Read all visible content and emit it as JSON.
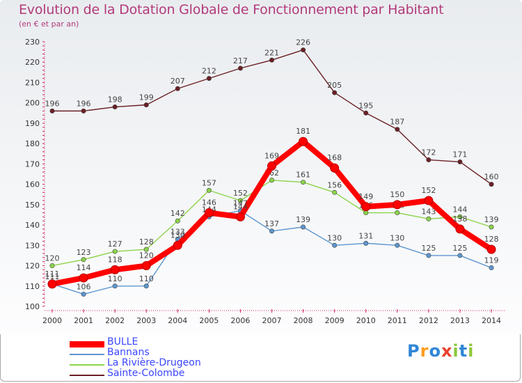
{
  "title": "Evolution de la Dotation Globale de Fonctionnement par Habitant",
  "subtitle": "(en € et par an)",
  "logo": "Proxiti",
  "chart_data": {
    "type": "line",
    "title": "Evolution de la Dotation Globale de Fonctionnement par Habitant",
    "subtitle": "(en € et par an)",
    "xlabel": "",
    "ylabel": "",
    "x": [
      "2000",
      "2001",
      "2002",
      "2003",
      "2004",
      "2005",
      "2006",
      "2007",
      "2008",
      "2009",
      "2010",
      "2011",
      "2012",
      "2013",
      "2014"
    ],
    "ylim": [
      100,
      230
    ],
    "yticks": [
      100,
      110,
      120,
      130,
      140,
      150,
      160,
      170,
      180,
      190,
      200,
      210,
      220,
      230
    ],
    "grid": false,
    "legend_position": "bottom-left",
    "series": [
      {
        "name": "Sainte-Colombe",
        "color": "#6b1f25",
        "values": [
          196,
          196,
          198,
          199,
          207,
          212,
          217,
          221,
          226,
          205,
          195,
          187,
          172,
          171,
          160
        ]
      },
      {
        "name": "La Rivière-Drugeon",
        "color": "#8bd34a",
        "values": [
          120,
          123,
          127,
          128,
          142,
          157,
          152,
          162,
          161,
          156,
          146,
          146,
          143,
          144,
          139
        ]
      },
      {
        "name": "Bannans",
        "color": "#5d96cf",
        "values": [
          111,
          106,
          110,
          110,
          133,
          144,
          147,
          137,
          139,
          130,
          131,
          130,
          125,
          125,
          119
        ]
      },
      {
        "name": "BULLE",
        "color": "#ff0000",
        "values": [
          111,
          114,
          118,
          120,
          130,
          146,
          144,
          169,
          181,
          168,
          149,
          150,
          152,
          138,
          128
        ]
      }
    ],
    "legend_order": [
      "BULLE",
      "Bannans",
      "La Rivière-Drugeon",
      "Sainte-Colombe"
    ]
  }
}
